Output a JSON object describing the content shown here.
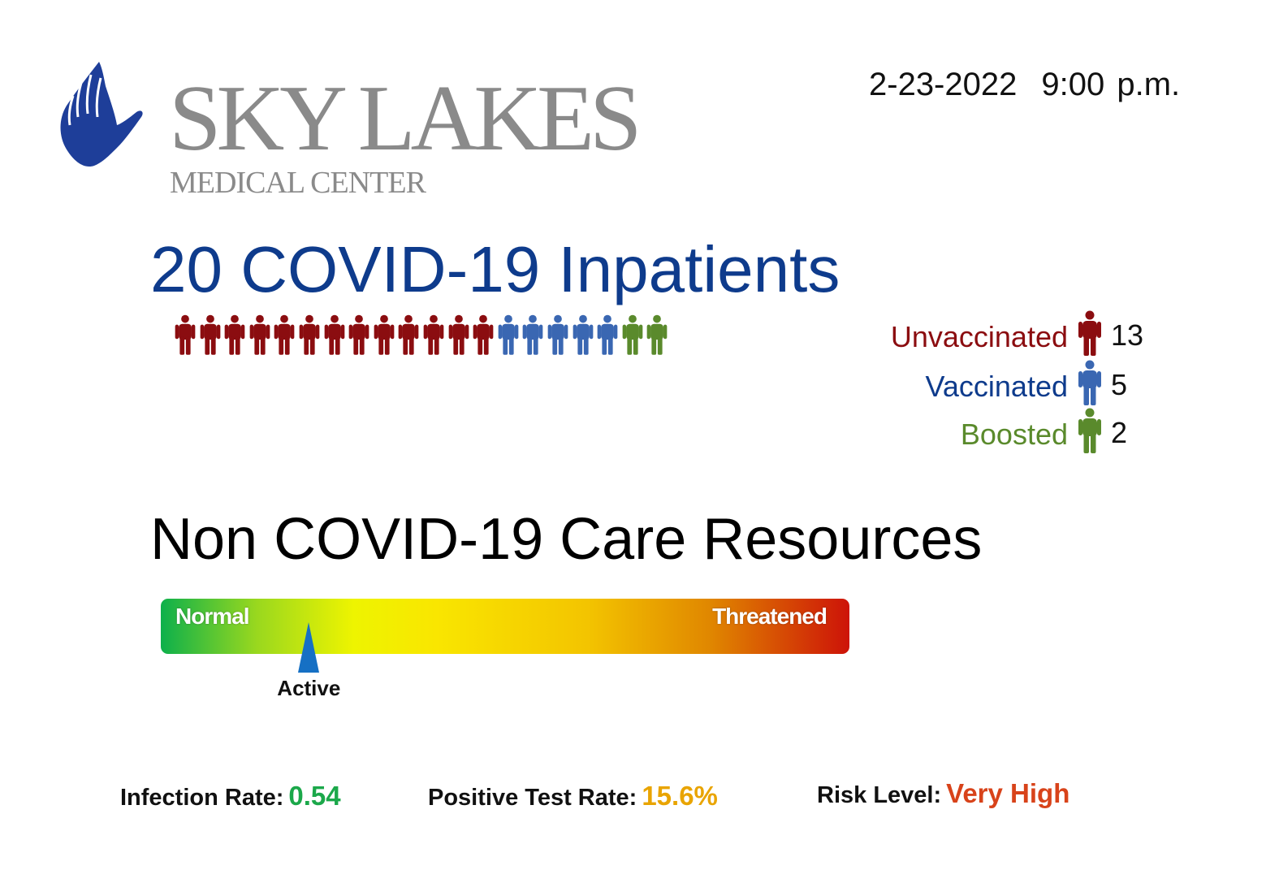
{
  "logo": {
    "brand": "SKY LAKES",
    "subtitle": "MEDICAL CENTER",
    "hand_color": "#1e3e99"
  },
  "datetime": {
    "date": "2-23-2022",
    "time": "9:00 p.m."
  },
  "inpatients": {
    "title": "20 COVID-19 Inpatients",
    "groups": [
      {
        "label": "Unvaccinated",
        "count": "13",
        "color": "#8b0d10",
        "icon": "person-icon"
      },
      {
        "label": "Vaccinated",
        "count": "5",
        "color": "#3a67b2",
        "icon": "person-icon"
      },
      {
        "label": "Boosted",
        "count": "2",
        "color": "#5a8a2c",
        "icon": "person-icon"
      }
    ],
    "label_colors": [
      "#8b0d10",
      "#0e3b8c",
      "#5a8a2c"
    ]
  },
  "resources": {
    "title": "Non COVID-19 Care Resources",
    "scale_left": "Normal",
    "scale_right": "Threatened",
    "pointer_label": "Active",
    "pointer_level": 0.215,
    "pointer_color": "#1670c4"
  },
  "stats": {
    "infection": {
      "label": "Infection Rate:",
      "value": "0.54",
      "color": "#1ba84a"
    },
    "positive": {
      "label": "Positive Test Rate:",
      "value": "15.6%",
      "color": "#e9a400"
    },
    "risk": {
      "label": "Risk Level:",
      "value": "Very High",
      "color": "#d8431a"
    }
  }
}
